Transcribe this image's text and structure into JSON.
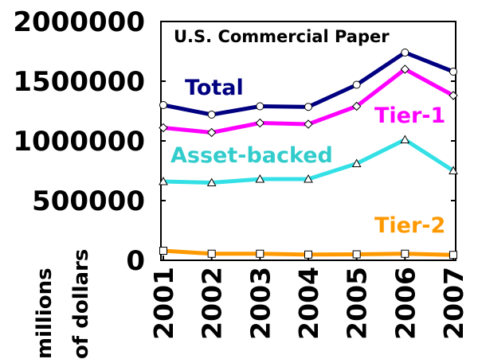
{
  "chart_data": {
    "type": "line",
    "title": "U.S. Commercial Paper",
    "xlabel": "",
    "ylabel_lines": [
      "millions",
      "of dollars"
    ],
    "x": [
      "2001",
      "2002",
      "2003",
      "2004",
      "2005",
      "2006",
      "2007"
    ],
    "ylim": [
      0,
      2000000
    ],
    "yticks": [
      0,
      500000,
      1000000,
      1500000,
      2000000
    ],
    "ytick_labels": [
      "0",
      "500000",
      "1000000",
      "1500000",
      "2000000"
    ],
    "grid": false,
    "series": [
      {
        "name": "Total",
        "color": "#000080",
        "marker": "circle",
        "values": [
          1300000,
          1220000,
          1290000,
          1285000,
          1470000,
          1740000,
          1580000
        ]
      },
      {
        "name": "Tier-1",
        "color": "#ff00ff",
        "marker": "diamond",
        "values": [
          1110000,
          1070000,
          1150000,
          1140000,
          1290000,
          1600000,
          1380000
        ]
      },
      {
        "name": "Asset-backed",
        "color": "#33e0e6",
        "marker": "triangle",
        "values": [
          660000,
          650000,
          680000,
          680000,
          810000,
          1010000,
          750000
        ]
      },
      {
        "name": "Tier-2",
        "color": "#ff9900",
        "marker": "square",
        "values": [
          80000,
          55000,
          55000,
          48000,
          50000,
          55000,
          45000
        ]
      }
    ]
  }
}
